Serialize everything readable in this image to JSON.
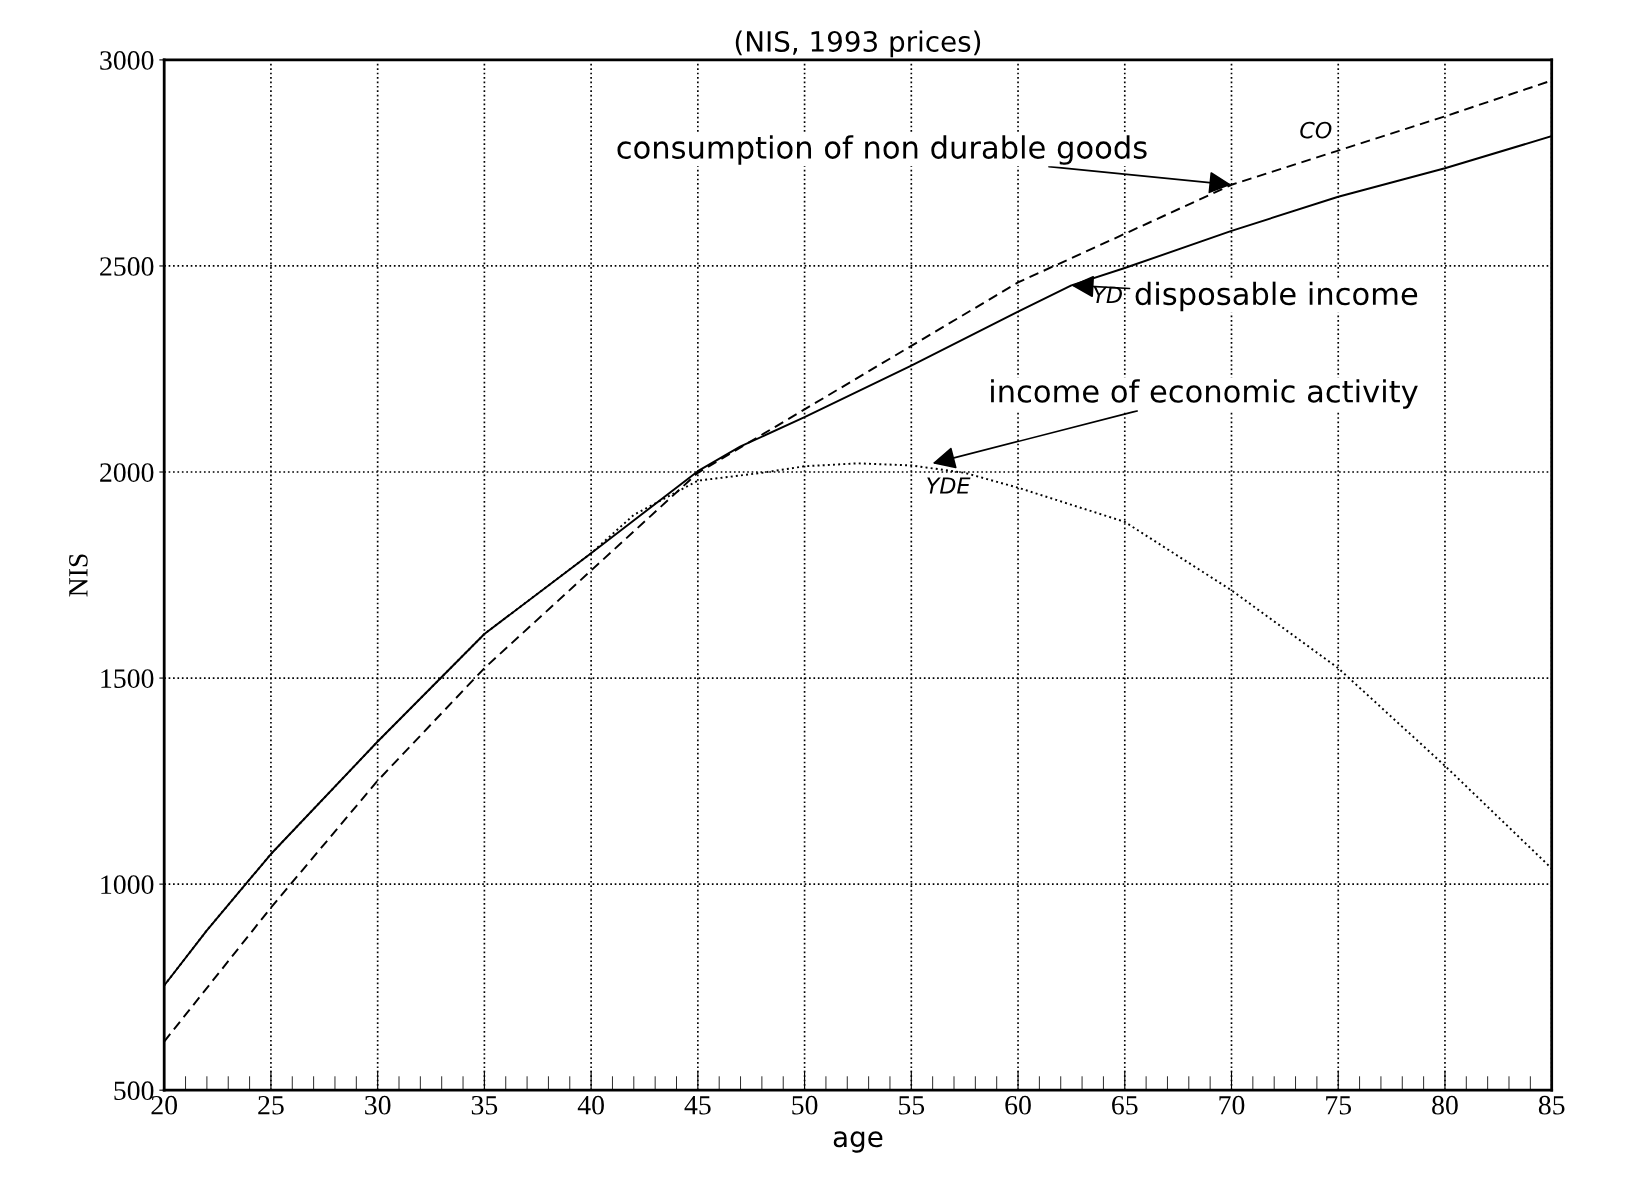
{
  "chart_data": {
    "type": "line",
    "subtitle": "(NIS, 1993 prices)",
    "xlabel": "age",
    "ylabel": "NIS",
    "xlim": [
      20,
      85
    ],
    "xticks": [
      20,
      25,
      30,
      35,
      40,
      45,
      50,
      55,
      60,
      65,
      70,
      75,
      80,
      85
    ],
    "ylim": [
      500,
      3000
    ],
    "yticks": [
      500,
      1000,
      1500,
      2000,
      2500,
      3000
    ],
    "grid": true,
    "legend": false,
    "series": [
      {
        "color": "#000000",
        "line_style": "solid",
        "x": [
          20,
          22,
          25,
          30,
          35,
          40,
          45,
          47,
          50,
          55,
          60,
          62.5,
          65,
          70,
          75,
          80,
          85
        ],
        "values": [
          754,
          888,
          1073,
          1346,
          1607,
          1803,
          2002,
          2062,
          2133,
          2258,
          2389,
          2453,
          2495,
          2585,
          2668,
          2737,
          2815
        ]
      },
      {
        "color": "#000000",
        "line_style": "dashed",
        "x": [
          20,
          25,
          30,
          35,
          40,
          45,
          50,
          55,
          60,
          65,
          70,
          75,
          80,
          85
        ],
        "values": [
          618,
          943,
          1251,
          1524,
          1761,
          1998,
          2152,
          2306,
          2460,
          2578,
          2697,
          2780,
          2863,
          2950
        ]
      },
      {
        "color": "#000000",
        "line_style": "dotted",
        "x": [
          20,
          22,
          25,
          30,
          35,
          40,
          42,
          45,
          48,
          50,
          52.5,
          55,
          57.5,
          60,
          65,
          70,
          75,
          80,
          85
        ],
        "values": [
          754,
          888,
          1073,
          1346,
          1607,
          1803,
          1896,
          1979,
          1998,
          2014,
          2021,
          2016,
          1998,
          1962,
          1879,
          1713,
          1524,
          1287,
          1038
        ]
      }
    ],
    "annotations": [
      {
        "text": "consumption of non durable goods",
        "x": 70,
        "y": 2697
      },
      {
        "text": "disposable income",
        "x": 62.5,
        "y": 2453
      },
      {
        "text": "income of economic activity",
        "x": 56,
        "y": 2021
      },
      "CO",
      "YD",
      "YDE"
    ]
  }
}
